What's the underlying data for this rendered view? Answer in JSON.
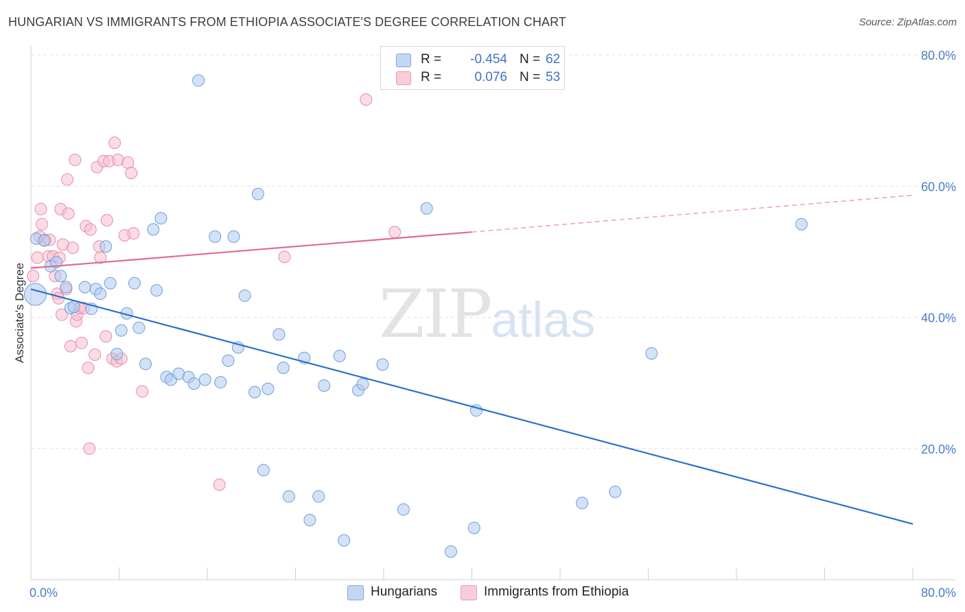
{
  "header": {
    "title": "HUNGARIAN VS IMMIGRANTS FROM ETHIOPIA ASSOCIATE'S DEGREE CORRELATION CHART",
    "source": "Source: ZipAtlas.com"
  },
  "watermark": {
    "part1": "ZIP",
    "part2": "atlas"
  },
  "legend": {
    "rows": [
      {
        "r_label": "R = ",
        "r_value": "-0.454",
        "n_label": "N = ",
        "n_value": "62"
      },
      {
        "r_label": "R = ",
        "r_value": "0.076",
        "n_label": "N = ",
        "n_value": "53"
      }
    ]
  },
  "bottom_legend": {
    "series1": "Hungarians",
    "series2": "Immigrants from Ethiopia"
  },
  "colors": {
    "blue_fill": "#aecbf0",
    "blue_stroke": "#6f9ed9",
    "blue_line": "#2a6fcf",
    "pink_fill": "#f6bfd0",
    "pink_stroke": "#e98aa8",
    "pink_line": "#e06b92",
    "grid": "#e2e2e2",
    "tick_label": "#4a7cc7"
  },
  "chart_data": {
    "type": "scatter",
    "title": "HUNGARIAN VS IMMIGRANTS FROM ETHIOPIA ASSOCIATE'S DEGREE CORRELATION CHART",
    "xlabel": "",
    "ylabel": "Associate's Degree",
    "xlim": [
      0,
      80
    ],
    "ylim": [
      0,
      80
    ],
    "x_tick_labels": [
      "0.0%",
      "80.0%"
    ],
    "y_ticks": [
      20,
      40,
      60,
      80
    ],
    "y_tick_labels": [
      "20.0%",
      "40.0%",
      "60.0%",
      "80.0%"
    ],
    "grid": true,
    "legend_position": "top-center",
    "series": [
      {
        "name": "Hungarians",
        "r": -0.454,
        "n": 62,
        "trend": {
          "x0": 0,
          "y0": 44.3,
          "x1": 80,
          "y1": 8.5
        },
        "points": [
          [
            0.4,
            43.5
          ],
          [
            0.5,
            52.0
          ],
          [
            1.2,
            51.7
          ],
          [
            1.8,
            47.8
          ],
          [
            2.3,
            48.4
          ],
          [
            2.7,
            46.3
          ],
          [
            3.2,
            44.6
          ],
          [
            3.6,
            41.4
          ],
          [
            3.9,
            41.6
          ],
          [
            4.9,
            44.6
          ],
          [
            5.5,
            41.3
          ],
          [
            5.9,
            44.3
          ],
          [
            6.3,
            43.6
          ],
          [
            6.8,
            50.8
          ],
          [
            7.2,
            45.2
          ],
          [
            7.8,
            34.4
          ],
          [
            8.2,
            38.0
          ],
          [
            8.7,
            40.6
          ],
          [
            9.4,
            45.2
          ],
          [
            9.8,
            38.4
          ],
          [
            10.4,
            32.9
          ],
          [
            11.1,
            53.4
          ],
          [
            11.4,
            44.1
          ],
          [
            11.8,
            55.1
          ],
          [
            12.3,
            30.9
          ],
          [
            12.7,
            30.5
          ],
          [
            13.4,
            31.4
          ],
          [
            14.3,
            30.9
          ],
          [
            14.8,
            29.9
          ],
          [
            15.2,
            76.1
          ],
          [
            15.8,
            30.5
          ],
          [
            16.7,
            52.3
          ],
          [
            17.2,
            30.1
          ],
          [
            17.9,
            33.4
          ],
          [
            18.4,
            52.3
          ],
          [
            18.8,
            35.4
          ],
          [
            19.4,
            43.3
          ],
          [
            20.3,
            28.6
          ],
          [
            20.6,
            58.8
          ],
          [
            21.1,
            16.7
          ],
          [
            21.5,
            29.1
          ],
          [
            22.5,
            37.4
          ],
          [
            22.9,
            32.3
          ],
          [
            23.4,
            12.7
          ],
          [
            24.8,
            33.8
          ],
          [
            25.3,
            9.1
          ],
          [
            26.1,
            12.7
          ],
          [
            26.6,
            29.6
          ],
          [
            28.0,
            34.1
          ],
          [
            28.4,
            6.0
          ],
          [
            29.7,
            28.9
          ],
          [
            30.1,
            29.8
          ],
          [
            31.9,
            32.8
          ],
          [
            33.8,
            10.7
          ],
          [
            35.9,
            56.6
          ],
          [
            38.1,
            4.3
          ],
          [
            40.2,
            7.9
          ],
          [
            40.4,
            25.8
          ],
          [
            50.0,
            11.7
          ],
          [
            53.0,
            13.4
          ],
          [
            56.3,
            34.5
          ],
          [
            69.9,
            54.2
          ]
        ]
      },
      {
        "name": "Immigrants from Ethiopia",
        "r": 0.076,
        "n": 53,
        "trend": {
          "x0": 0,
          "y0": 47.5,
          "x1": 40,
          "y1": 53.0,
          "dashed_to_x": 80,
          "dashed_to_y": 58.6
        },
        "points": [
          [
            0.2,
            46.3
          ],
          [
            0.6,
            49.1
          ],
          [
            0.8,
            52.3
          ],
          [
            0.9,
            56.5
          ],
          [
            1.0,
            54.2
          ],
          [
            1.3,
            51.8
          ],
          [
            1.6,
            49.3
          ],
          [
            1.7,
            51.8
          ],
          [
            2.0,
            49.3
          ],
          [
            2.2,
            46.3
          ],
          [
            2.4,
            43.6
          ],
          [
            2.5,
            42.9
          ],
          [
            2.6,
            49.1
          ],
          [
            2.7,
            56.5
          ],
          [
            2.8,
            40.4
          ],
          [
            2.9,
            51.1
          ],
          [
            3.2,
            44.3
          ],
          [
            3.3,
            61.0
          ],
          [
            3.4,
            55.8
          ],
          [
            3.6,
            35.6
          ],
          [
            3.8,
            50.6
          ],
          [
            4.0,
            64.0
          ],
          [
            4.1,
            39.4
          ],
          [
            4.2,
            40.4
          ],
          [
            4.4,
            41.4
          ],
          [
            4.6,
            36.1
          ],
          [
            4.8,
            41.4
          ],
          [
            5.0,
            53.9
          ],
          [
            5.2,
            32.3
          ],
          [
            5.3,
            20.0
          ],
          [
            5.4,
            53.4
          ],
          [
            5.8,
            34.3
          ],
          [
            6.0,
            62.9
          ],
          [
            6.3,
            49.1
          ],
          [
            6.6,
            63.8
          ],
          [
            6.8,
            37.1
          ],
          [
            6.9,
            54.8
          ],
          [
            7.1,
            63.8
          ],
          [
            7.4,
            33.7
          ],
          [
            7.6,
            66.6
          ],
          [
            7.8,
            33.3
          ],
          [
            7.9,
            64.0
          ],
          [
            8.2,
            33.7
          ],
          [
            8.5,
            52.5
          ],
          [
            8.8,
            63.6
          ],
          [
            9.1,
            62.0
          ],
          [
            9.3,
            52.8
          ],
          [
            10.1,
            28.7
          ],
          [
            17.1,
            14.5
          ],
          [
            23.0,
            49.2
          ],
          [
            30.4,
            73.2
          ],
          [
            33.0,
            53.0
          ],
          [
            6.2,
            50.8
          ]
        ]
      }
    ]
  }
}
